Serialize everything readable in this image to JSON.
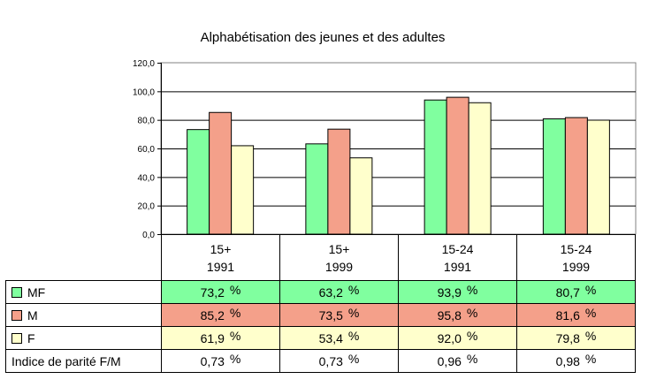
{
  "chart_data": {
    "type": "bar",
    "title": "Alphabétisation des jeunes et des adultes",
    "categories": [
      {
        "line1": "15+",
        "line2": "1991"
      },
      {
        "line1": "15+",
        "line2": "1999"
      },
      {
        "line1": "15-24",
        "line2": "1991"
      },
      {
        "line1": "15-24",
        "line2": "1999"
      }
    ],
    "ylim": [
      0,
      120
    ],
    "yticks": [
      "0,0",
      "20,0",
      "40,0",
      "60,0",
      "80,0",
      "100,0",
      "120,0"
    ],
    "grid": true,
    "series": [
      {
        "name": "MF",
        "color": "#80ff9f",
        "values": [
          73.2,
          63.2,
          93.9,
          80.7
        ],
        "labels": [
          "73,2",
          "63,2",
          "93,9",
          "80,7"
        ]
      },
      {
        "name": "M",
        "color": "#f4a08a",
        "values": [
          85.2,
          73.5,
          95.8,
          81.6
        ],
        "labels": [
          "85,2",
          "73,5",
          "95,8",
          "81,6"
        ]
      },
      {
        "name": "F",
        "color": "#ffffcc",
        "values": [
          61.9,
          53.4,
          92.0,
          79.8
        ],
        "labels": [
          "61,9",
          "53,4",
          "92,0",
          "79,8"
        ]
      }
    ],
    "parity": {
      "name": "Indice de parité F/M",
      "labels": [
        "0,73",
        "0,73",
        "0,96",
        "0,98"
      ]
    },
    "percent_sign": "%"
  }
}
